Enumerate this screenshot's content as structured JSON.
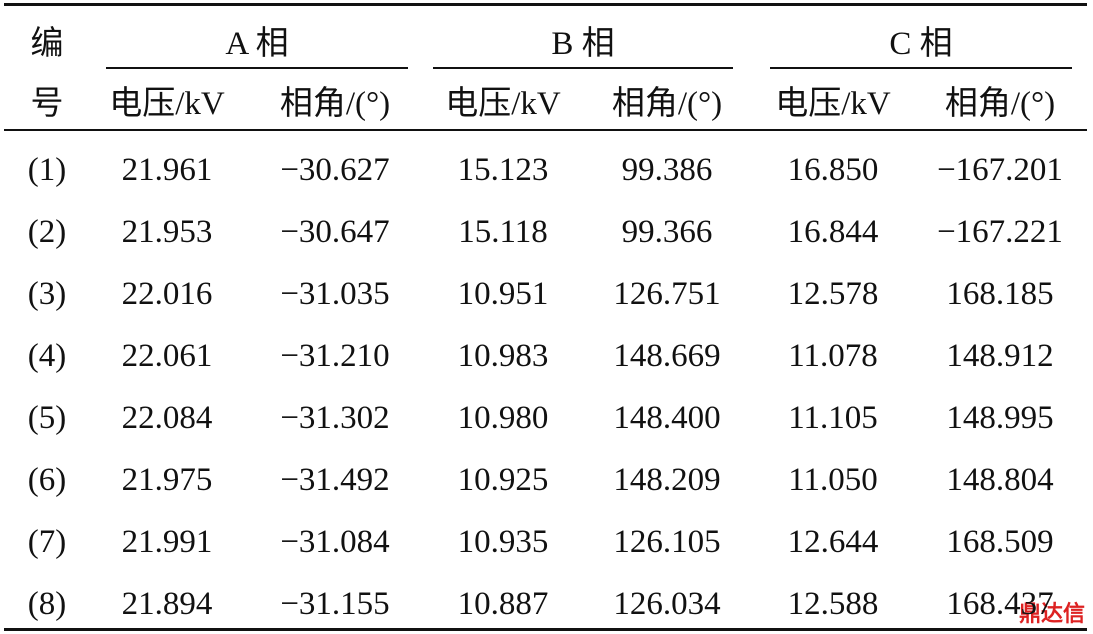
{
  "header": {
    "id_top": "编",
    "id_bottom": "号",
    "groups": [
      "A 相",
      "B 相",
      "C 相"
    ],
    "subheaders": [
      "电压/kV",
      "相角/(°)",
      "电压/kV",
      "相角/(°)",
      "电压/kV",
      "相角/(°)"
    ]
  },
  "table": {
    "rows": [
      [
        "(1)",
        "21.961",
        "−30.627",
        "15.123",
        "99.386",
        "16.850",
        "−167.201"
      ],
      [
        "(2)",
        "21.953",
        "−30.647",
        "15.118",
        "99.366",
        "16.844",
        "−167.221"
      ],
      [
        "(3)",
        "22.016",
        "−31.035",
        "10.951",
        "126.751",
        "12.578",
        "168.185"
      ],
      [
        "(4)",
        "22.061",
        "−31.210",
        "10.983",
        "148.669",
        "11.078",
        "148.912"
      ],
      [
        "(5)",
        "22.084",
        "−31.302",
        "10.980",
        "148.400",
        "11.105",
        "148.995"
      ],
      [
        "(6)",
        "21.975",
        "−31.492",
        "10.925",
        "148.209",
        "11.050",
        "148.804"
      ],
      [
        "(7)",
        "21.991",
        "−31.084",
        "10.935",
        "126.105",
        "12.644",
        "168.509"
      ],
      [
        "(8)",
        "21.894",
        "−31.155",
        "10.887",
        "126.034",
        "12.588",
        "168.437"
      ]
    ]
  },
  "watermark": "鼎达信"
}
